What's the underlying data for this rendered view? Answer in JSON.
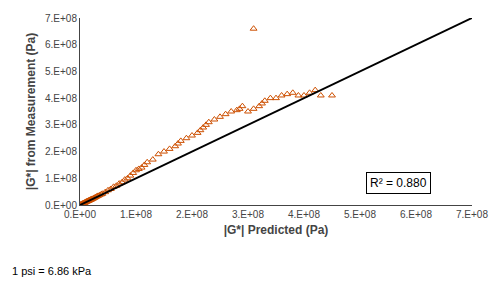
{
  "chart_data": {
    "type": "scatter",
    "xlabel": "|G*| Predicted (Pa)",
    "ylabel": "|G*| from Measurement (Pa)",
    "annotations": [
      "R² = 0.880"
    ],
    "footnote": "1 psi = 6.86 kPa",
    "grid": false,
    "series": [
      {
        "type": "scatter",
        "marker": "open_triangle",
        "color": "#cd4f00",
        "x": [
          1000000.0,
          2000000.0,
          3000000.0,
          4000000.0,
          5000000.0,
          6000000.0,
          7000000.0,
          8000000.0,
          9000000.0,
          10000000.0,
          11000000.0,
          12000000.0,
          13000000.0,
          14000000.0,
          15000000.0,
          16000000.0,
          17000000.0,
          18000000.0,
          19000000.0,
          20000000.0,
          21000000.0,
          22000000.0,
          24000000.0,
          26000000.0,
          28000000.0,
          30000000.0,
          32000000.0,
          35000000.0,
          38000000.0,
          40000000.0,
          45000000.0,
          50000000.0,
          55000000.0,
          60000000.0,
          65000000.0,
          70000000.0,
          75000000.0,
          80000000.0,
          85000000.0,
          90000000.0,
          95000000.0,
          100000000.0,
          105000000.0,
          110000000.0,
          115000000.0,
          120000000.0,
          130000000.0,
          140000000.0,
          150000000.0,
          160000000.0,
          170000000.0,
          175000000.0,
          180000000.0,
          190000000.0,
          200000000.0,
          210000000.0,
          215000000.0,
          220000000.0,
          225000000.0,
          230000000.0,
          240000000.0,
          250000000.0,
          260000000.0,
          270000000.0,
          280000000.0,
          285000000.0,
          290000000.0,
          300000000.0,
          310000000.0,
          320000000.0,
          325000000.0,
          330000000.0,
          340000000.0,
          350000000.0,
          360000000.0,
          370000000.0,
          380000000.0,
          390000000.0,
          400000000.0,
          410000000.0,
          420000000.0,
          430000000.0,
          450000000.0,
          310000000.0
        ],
        "values": [
          1200000.0,
          2500000.0,
          3500000.0,
          4500000.0,
          5500000.0,
          6500000.0,
          7500000.0,
          8500000.0,
          9500000.0,
          11000000.0,
          12000000.0,
          13000000.0,
          14000000.0,
          15000000.0,
          16000000.0,
          17000000.0,
          18000000.0,
          19000000.0,
          20000000.0,
          21000000.0,
          22000000.0,
          23000000.0,
          25000000.0,
          27000000.0,
          30000000.0,
          32000000.0,
          34000000.0,
          37000000.0,
          40000000.0,
          42000000.0,
          48000000.0,
          55000000.0,
          60000000.0,
          68000000.0,
          72000000.0,
          80000000.0,
          85000000.0,
          95000000.0,
          100000000.0,
          110000000.0,
          120000000.0,
          130000000.0,
          135000000.0,
          140000000.0,
          150000000.0,
          160000000.0,
          170000000.0,
          190000000.0,
          200000000.0,
          210000000.0,
          220000000.0,
          230000000.0,
          240000000.0,
          250000000.0,
          260000000.0,
          270000000.0,
          280000000.0,
          290000000.0,
          300000000.0,
          310000000.0,
          320000000.0,
          330000000.0,
          340000000.0,
          350000000.0,
          355000000.0,
          360000000.0,
          370000000.0,
          350000000.0,
          360000000.0,
          370000000.0,
          380000000.0,
          390000000.0,
          400000000.0,
          400000000.0,
          410000000.0,
          415000000.0,
          420000000.0,
          410000000.0,
          410000000.0,
          420000000.0,
          430000000.0,
          410000000.0,
          410000000.0,
          660000000.0
        ]
      },
      {
        "type": "line",
        "line_style": "solid",
        "color": "#000000",
        "x": [
          0,
          700000000.0
        ],
        "values": [
          0,
          700000000.0
        ]
      }
    ],
    "xlim": [
      0,
      700000000.0
    ],
    "ylim": [
      0,
      700000000.0
    ],
    "xticks": [
      {
        "value": 0,
        "label": "0.E+00"
      },
      {
        "value": 100000000.0,
        "label": "1.E+08"
      },
      {
        "value": 200000000.0,
        "label": "2.E+08"
      },
      {
        "value": 300000000.0,
        "label": "3.E+08"
      },
      {
        "value": 400000000.0,
        "label": "4.E+08"
      },
      {
        "value": 500000000.0,
        "label": "5.E+08"
      },
      {
        "value": 600000000.0,
        "label": "6.E+08"
      },
      {
        "value": 700000000.0,
        "label": "7.E+08"
      }
    ],
    "yticks": [
      {
        "value": 0,
        "label": "0.E+00"
      },
      {
        "value": 100000000.0,
        "label": "1.E+08"
      },
      {
        "value": 200000000.0,
        "label": "2.E+08"
      },
      {
        "value": 300000000.0,
        "label": "3.E+08"
      },
      {
        "value": 400000000.0,
        "label": "4.E+08"
      },
      {
        "value": 500000000.0,
        "label": "5.E+08"
      },
      {
        "value": 600000000.0,
        "label": "6.E+08"
      },
      {
        "value": 700000000.0,
        "label": "7.E+08"
      }
    ]
  }
}
